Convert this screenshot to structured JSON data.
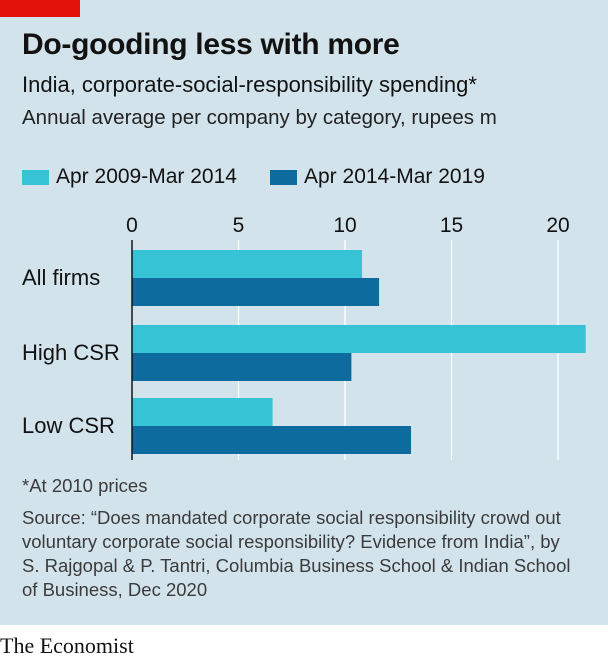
{
  "title": "Do-gooding less with more",
  "subtitle": "India, corporate-social-responsibility spending*",
  "subsubtitle": "Annual average per company by category, rupees m",
  "footnote": "*At 2010 prices",
  "source": "Source: “Does mandated corporate social responsibility crowd out voluntary corporate social responsibility? Evidence from India”, by S. Rajgopal & P. Tantri, Columbia Business School & Indian School of Business, Dec 2020",
  "brand": "The Economist",
  "colors": {
    "series1": "#37c3d6",
    "series2": "#0e6b9e",
    "panel": "#d2e3ec",
    "accent": "#e3120b"
  },
  "chart_data": {
    "type": "bar",
    "orientation": "horizontal",
    "categories": [
      "All firms",
      "High CSR",
      "Low CSR"
    ],
    "series": [
      {
        "name": "Apr 2009-Mar 2014",
        "values": [
          10.8,
          21.3,
          6.6
        ]
      },
      {
        "name": "Apr 2014-Mar 2019",
        "values": [
          11.6,
          10.3,
          13.1
        ]
      }
    ],
    "xticks": [
      0,
      5,
      10,
      15,
      20
    ],
    "xlim": [
      0,
      21.3
    ],
    "grid": true,
    "legend": "top-left"
  }
}
